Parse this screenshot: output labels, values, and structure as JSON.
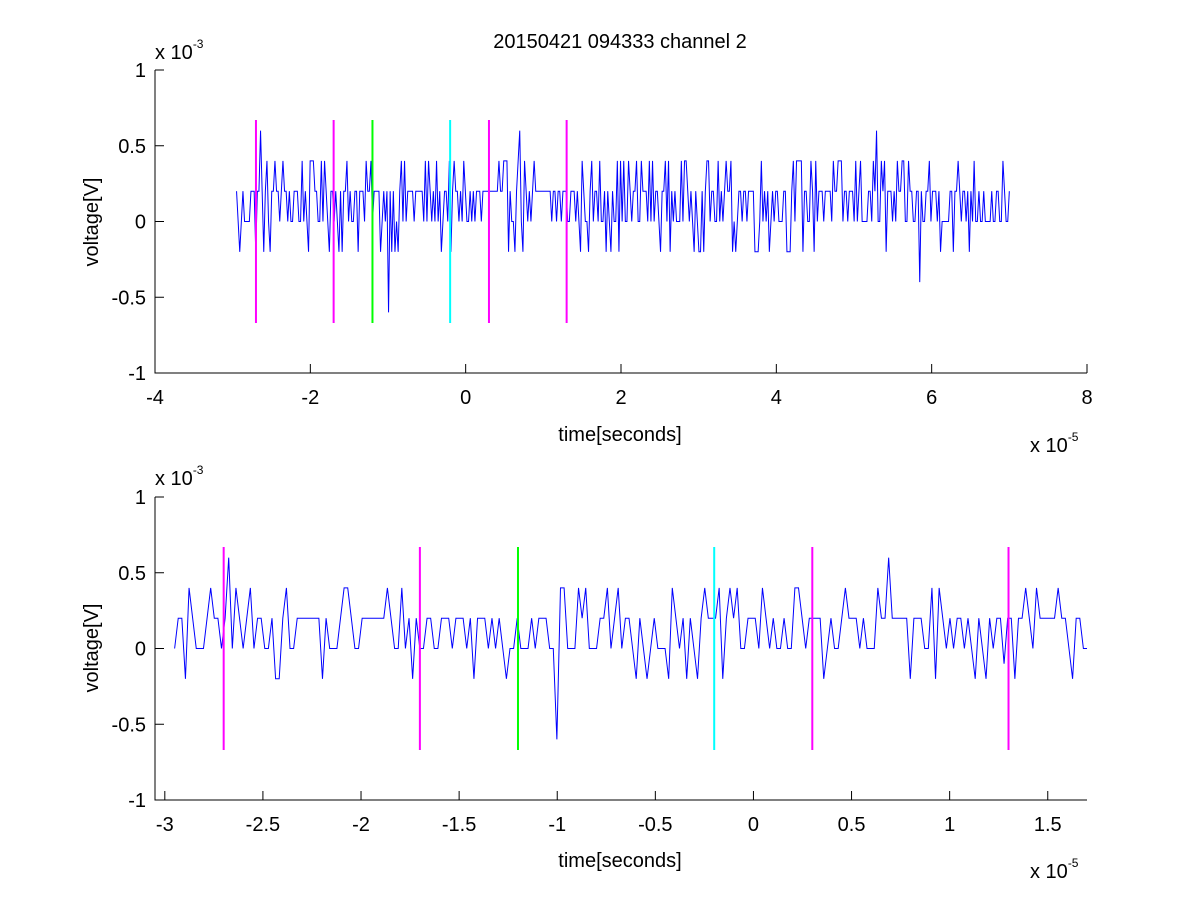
{
  "figure_title": "20150421 094333 channel 2",
  "colors": {
    "signal": "#0000ff",
    "marker_magenta": "#ff00ff",
    "marker_green": "#00ff00",
    "marker_cyan": "#00ffff",
    "axes": "#000000",
    "background": "#ffffff"
  },
  "chart_data": [
    {
      "type": "line",
      "title": "20150421 094333 channel 2",
      "xlabel": "time[seconds]",
      "ylabel": "voltage[V]",
      "x_exponent_label": "x 10",
      "x_exponent": "-5",
      "y_exponent_label": "x 10",
      "y_exponent": "-3",
      "xlim": [
        -4,
        8
      ],
      "ylim": [
        -1,
        1
      ],
      "xticks": [
        -4,
        -2,
        0,
        2,
        4,
        6,
        8
      ],
      "yticks": [
        -1,
        -0.5,
        0,
        0.5,
        1
      ],
      "xtick_labels": [
        "-4",
        "-2",
        "0",
        "2",
        "4",
        "6",
        "8"
      ],
      "ytick_labels": [
        "-1",
        "-0.5",
        "0",
        "0.5",
        "1"
      ],
      "grid": false,
      "series": [
        {
          "kind": "quantized_noise",
          "x_range": [
            -2.95,
            7.0
          ],
          "levels": [
            -0.2,
            0,
            0.2,
            0.4
          ],
          "spikes": [
            {
              "x": -2.9,
              "y": -0.2
            },
            {
              "x": -2.65,
              "y": 0.6
            },
            {
              "x": -1.0,
              "y": -0.6
            },
            {
              "x": 0.7,
              "y": 0.6
            },
            {
              "x": 5.3,
              "y": 0.6
            },
            {
              "x": 5.85,
              "y": -0.4
            }
          ]
        }
      ],
      "markers": [
        {
          "x": -2.7,
          "color": "magenta",
          "ymin": -0.67,
          "ymax": 0.67
        },
        {
          "x": -1.7,
          "color": "magenta",
          "ymin": -0.67,
          "ymax": 0.67
        },
        {
          "x": -1.2,
          "color": "green",
          "ymin": -0.67,
          "ymax": 0.67
        },
        {
          "x": -0.2,
          "color": "cyan",
          "ymin": -0.67,
          "ymax": 0.67
        },
        {
          "x": 0.3,
          "color": "magenta",
          "ymin": -0.67,
          "ymax": 0.67
        },
        {
          "x": 1.3,
          "color": "magenta",
          "ymin": -0.67,
          "ymax": 0.67
        }
      ]
    },
    {
      "type": "line",
      "title": "",
      "xlabel": "time[seconds]",
      "ylabel": "voltage[V]",
      "x_exponent_label": "x 10",
      "x_exponent": "-5",
      "y_exponent_label": "x 10",
      "y_exponent": "-3",
      "xlim": [
        -3.05,
        1.7
      ],
      "ylim": [
        -1,
        1
      ],
      "xticks": [
        -3,
        -2.5,
        -2,
        -1.5,
        -1,
        -0.5,
        0,
        0.5,
        1,
        1.5
      ],
      "yticks": [
        -1,
        -0.5,
        0,
        0.5,
        1
      ],
      "xtick_labels": [
        "-3",
        "-2.5",
        "-2",
        "-1.5",
        "-1",
        "-0.5",
        "0",
        "0.5",
        "1",
        "1.5"
      ],
      "ytick_labels": [
        "-1",
        "-0.5",
        "0",
        "0.5",
        "1"
      ],
      "grid": false,
      "series": [
        {
          "kind": "quantized_noise",
          "x_range": [
            -2.95,
            1.7
          ],
          "levels": [
            -0.2,
            0,
            0.2,
            0.4
          ],
          "spikes": [
            {
              "x": -2.9,
              "y": -0.2
            },
            {
              "x": -2.68,
              "y": 0.6
            },
            {
              "x": -1.0,
              "y": -0.6
            },
            {
              "x": 0.68,
              "y": 0.6
            },
            {
              "x": 1.28,
              "y": -0.1
            }
          ]
        }
      ],
      "markers": [
        {
          "x": -2.7,
          "color": "magenta",
          "ymin": -0.67,
          "ymax": 0.67
        },
        {
          "x": -1.7,
          "color": "magenta",
          "ymin": -0.67,
          "ymax": 0.67
        },
        {
          "x": -1.2,
          "color": "green",
          "ymin": -0.67,
          "ymax": 0.67
        },
        {
          "x": -0.2,
          "color": "cyan",
          "ymin": -0.67,
          "ymax": 0.67
        },
        {
          "x": 0.3,
          "color": "magenta",
          "ymin": -0.67,
          "ymax": 0.67
        },
        {
          "x": 1.3,
          "color": "magenta",
          "ymin": -0.67,
          "ymax": 0.67
        }
      ]
    }
  ]
}
